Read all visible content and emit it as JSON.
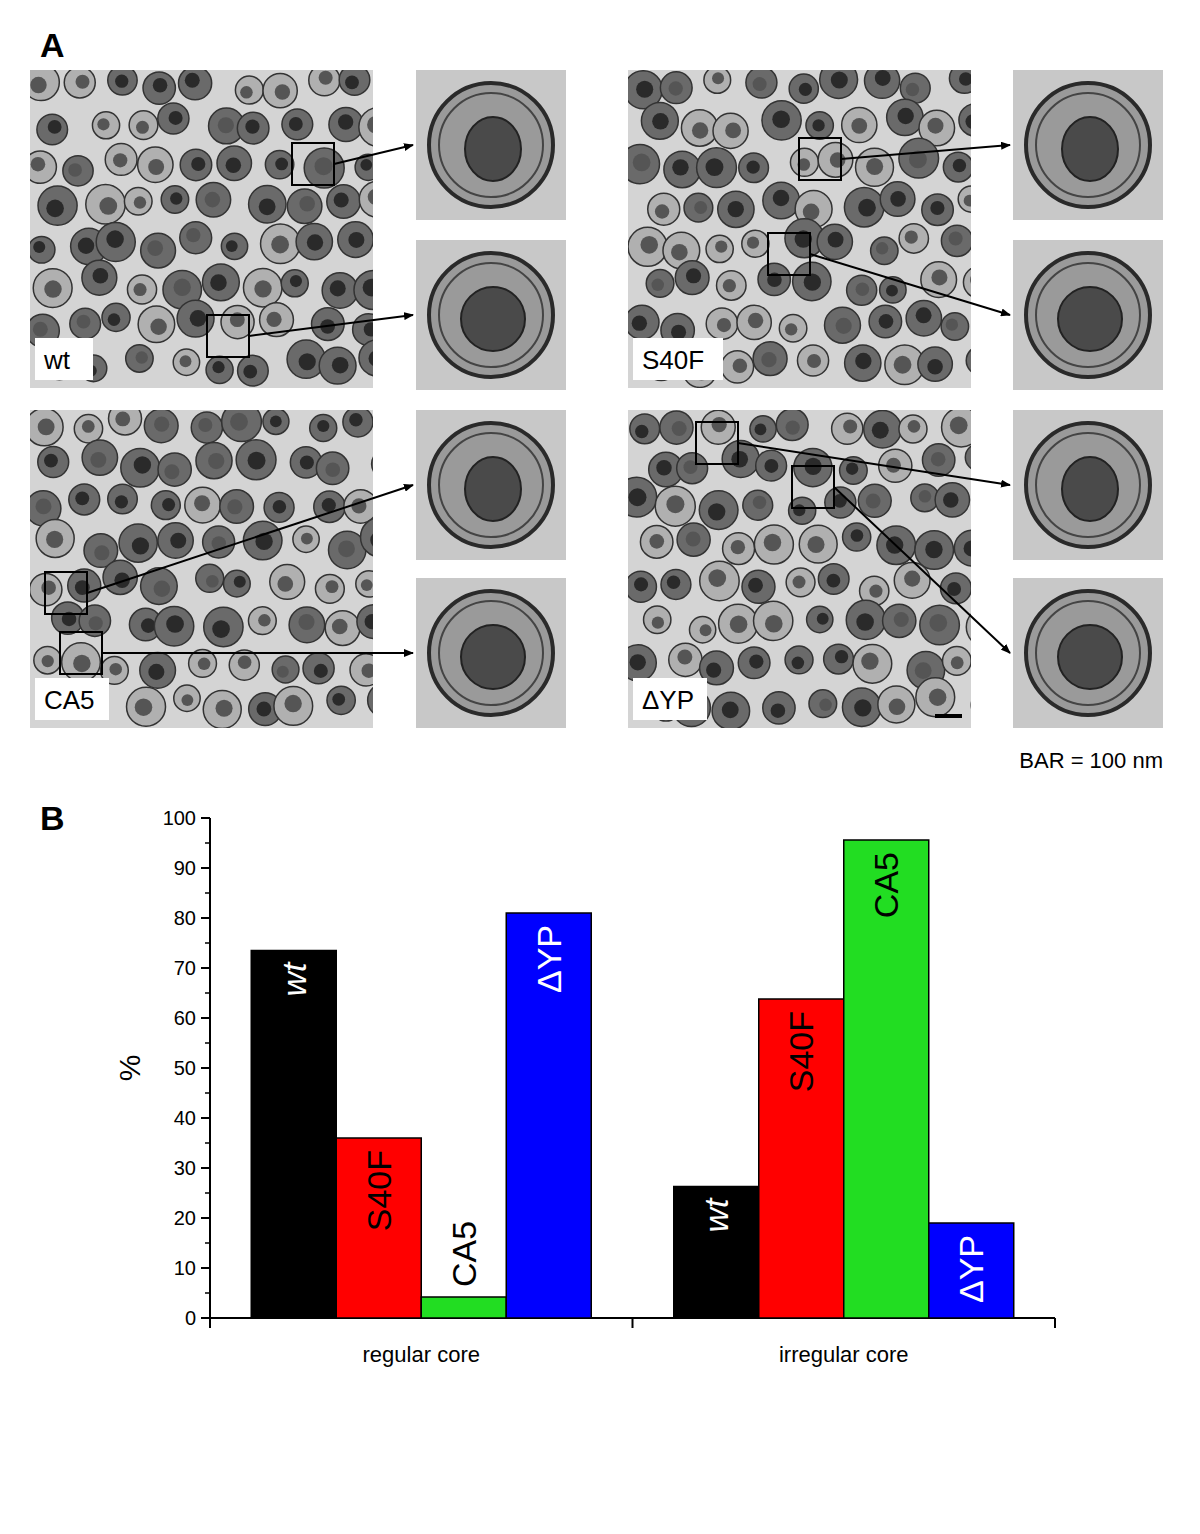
{
  "panel_a": {
    "label": "A",
    "images": [
      {
        "label": "wt"
      },
      {
        "label": "S40F"
      },
      {
        "label": "CA5"
      },
      {
        "label": "ΔYP"
      }
    ],
    "scale_bar": "BAR = 100 nm"
  },
  "panel_b": {
    "label": "B"
  },
  "chart_data": {
    "type": "bar",
    "y_label": "%",
    "categories": [
      "regular core",
      "irregular core"
    ],
    "series": [
      {
        "name": "wt",
        "color": "#000000",
        "values": [
          73.5,
          26.3
        ]
      },
      {
        "name": "S40F",
        "color": "#ff0000",
        "values": [
          36,
          63.8
        ]
      },
      {
        "name": "CA5",
        "color": "#22dd22",
        "values": [
          4.2,
          95.6
        ]
      },
      {
        "name": "ΔYP",
        "color": "#0000ff",
        "values": [
          81,
          19
        ]
      }
    ],
    "ylim": [
      0,
      100
    ],
    "yticks": [
      0,
      10,
      20,
      30,
      40,
      50,
      60,
      70,
      80,
      90,
      100
    ],
    "data_labels": false,
    "grid": false
  }
}
